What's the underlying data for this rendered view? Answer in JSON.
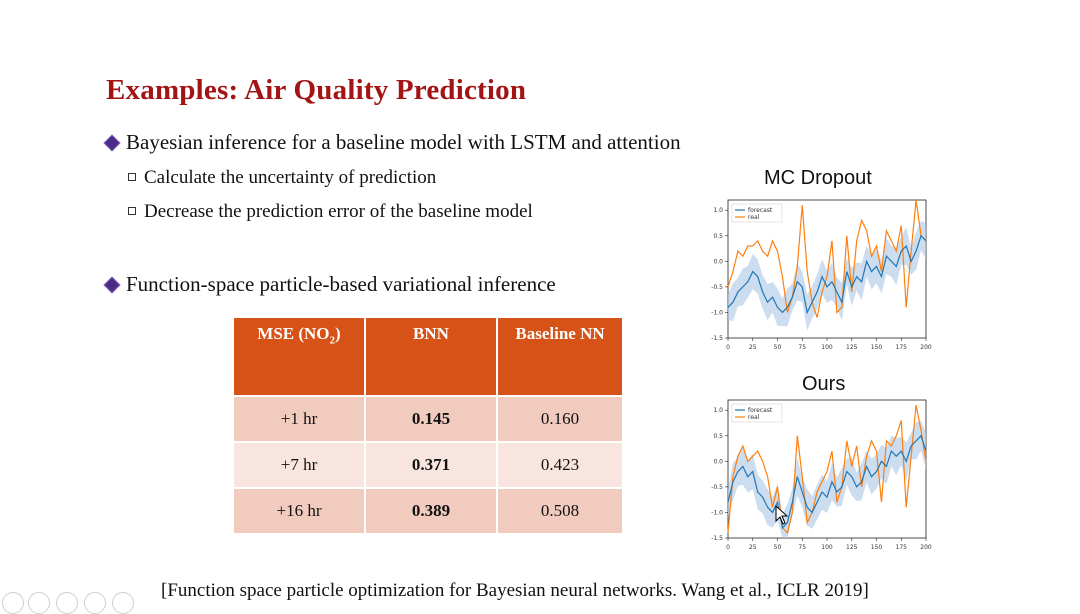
{
  "slide": {
    "title": "Examples: Air Quality Prediction",
    "bullets": [
      {
        "text": "Bayesian inference for a baseline model with LSTM and attention",
        "subs": [
          "Calculate the uncertainty of prediction",
          "Decrease the prediction error of the baseline model"
        ]
      },
      {
        "text": "Function-space particle-based variational inference",
        "subs": []
      }
    ],
    "citation": "[Function space particle optimization for Bayesian neural networks. Wang et al., ICLR 2019]"
  },
  "table": {
    "headers": {
      "col1_main": "MSE (NO",
      "col1_sub": "2",
      "col1_close": ")",
      "col2": "BNN",
      "col3": "Baseline NN"
    },
    "rows": [
      {
        "horizon": "+1 hr",
        "bnn": "0.145",
        "baseline": "0.160"
      },
      {
        "horizon": "+7 hr",
        "bnn": "0.371",
        "baseline": "0.423"
      },
      {
        "horizon": "+16 hr",
        "bnn": "0.389",
        "baseline": "0.508"
      }
    ]
  },
  "colors": {
    "title": "#a31414",
    "header": "#d65217",
    "row_dark": "#f2cbbf",
    "row_light": "#f9e5df",
    "forecast": "#1f77b4",
    "real": "#ff7f0e",
    "band": "#aac7e6"
  },
  "chart_data": [
    {
      "type": "line",
      "title": "MC Dropout",
      "legend": [
        "forecast",
        "real"
      ],
      "legend_position": "top-left",
      "x_ticks": [
        "0",
        "25",
        "50",
        "75",
        "100",
        "125",
        "150",
        "175",
        "200"
      ],
      "y_ticks": [
        "1.0",
        "0.5",
        "0.0",
        "-0.5",
        "-1.0",
        "-1.5"
      ],
      "xlim": [
        0,
        200
      ],
      "ylim": [
        -1.5,
        1.2
      ],
      "x": [
        0,
        5,
        10,
        15,
        20,
        25,
        30,
        35,
        40,
        45,
        50,
        55,
        60,
        65,
        70,
        75,
        80,
        85,
        90,
        95,
        100,
        105,
        110,
        115,
        120,
        125,
        130,
        135,
        140,
        145,
        150,
        155,
        160,
        165,
        170,
        175,
        180,
        185,
        190,
        195,
        200
      ],
      "series": [
        {
          "name": "forecast",
          "values": [
            -0.9,
            -0.8,
            -0.6,
            -0.5,
            -0.4,
            -0.2,
            -0.3,
            -0.6,
            -0.8,
            -0.7,
            -0.9,
            -1.0,
            -0.9,
            -0.7,
            -0.4,
            -0.5,
            -1.0,
            -0.8,
            -0.6,
            -0.3,
            -0.5,
            -0.4,
            -0.6,
            -0.8,
            -0.2,
            -0.5,
            -0.3,
            -0.4,
            0.0,
            -0.2,
            -0.1,
            -0.3,
            0.1,
            0.0,
            -0.1,
            0.2,
            0.3,
            0.0,
            0.2,
            0.5,
            0.4
          ]
        },
        {
          "name": "real",
          "values": [
            -0.5,
            -0.2,
            0.2,
            0.1,
            0.3,
            0.3,
            0.4,
            0.2,
            0.1,
            0.4,
            0.2,
            -0.3,
            -1.0,
            -0.7,
            -0.1,
            1.1,
            -0.2,
            -0.8,
            -1.1,
            -0.6,
            -0.3,
            0.4,
            -1.0,
            -0.9,
            0.5,
            -0.6,
            0.4,
            0.8,
            0.6,
            0.1,
            0.3,
            -0.2,
            0.6,
            0.4,
            0.2,
            0.7,
            -0.9,
            0.2,
            1.2,
            0.5,
            0.4
          ]
        }
      ]
    },
    {
      "type": "line",
      "title": "Ours",
      "legend": [
        "forecast",
        "real"
      ],
      "legend_position": "top-left",
      "x_ticks": [
        "0",
        "25",
        "50",
        "75",
        "100",
        "125",
        "150",
        "175",
        "200"
      ],
      "y_ticks": [
        "1.0",
        "0.5",
        "0.0",
        "-0.5",
        "-1.0",
        "-1.5"
      ],
      "xlim": [
        0,
        200
      ],
      "ylim": [
        -1.5,
        1.2
      ],
      "x": [
        0,
        5,
        10,
        15,
        20,
        25,
        30,
        35,
        40,
        45,
        50,
        55,
        60,
        65,
        70,
        75,
        80,
        85,
        90,
        95,
        100,
        105,
        110,
        115,
        120,
        125,
        130,
        135,
        140,
        145,
        150,
        155,
        160,
        165,
        170,
        175,
        180,
        185,
        190,
        195,
        200
      ],
      "series": [
        {
          "name": "forecast",
          "values": [
            -0.8,
            -0.4,
            -0.2,
            -0.1,
            -0.3,
            -0.2,
            -0.6,
            -0.7,
            -0.9,
            -1.0,
            -0.8,
            -1.3,
            -1.2,
            -0.8,
            -0.3,
            -0.6,
            -0.9,
            -1.0,
            -0.8,
            -0.6,
            -0.7,
            -0.4,
            -0.6,
            -0.5,
            -0.2,
            -0.3,
            -0.5,
            -0.4,
            -0.1,
            -0.3,
            -0.2,
            0.0,
            -0.1,
            0.2,
            0.1,
            0.2,
            0.0,
            0.3,
            0.4,
            0.5,
            0.2
          ]
        },
        {
          "name": "real",
          "values": [
            -1.4,
            -0.3,
            0.1,
            0.3,
            0.0,
            0.1,
            0.2,
            0.0,
            -0.3,
            -0.9,
            -0.5,
            -1.3,
            -1.4,
            -1.0,
            0.5,
            -0.3,
            -1.2,
            -1.0,
            -0.6,
            -0.4,
            -0.2,
            0.2,
            -0.8,
            -0.5,
            0.4,
            -0.1,
            0.3,
            -0.5,
            0.1,
            0.4,
            0.2,
            -0.8,
            0.4,
            0.3,
            0.5,
            0.8,
            -0.9,
            0.1,
            1.1,
            0.6,
            0.0
          ]
        }
      ]
    }
  ]
}
